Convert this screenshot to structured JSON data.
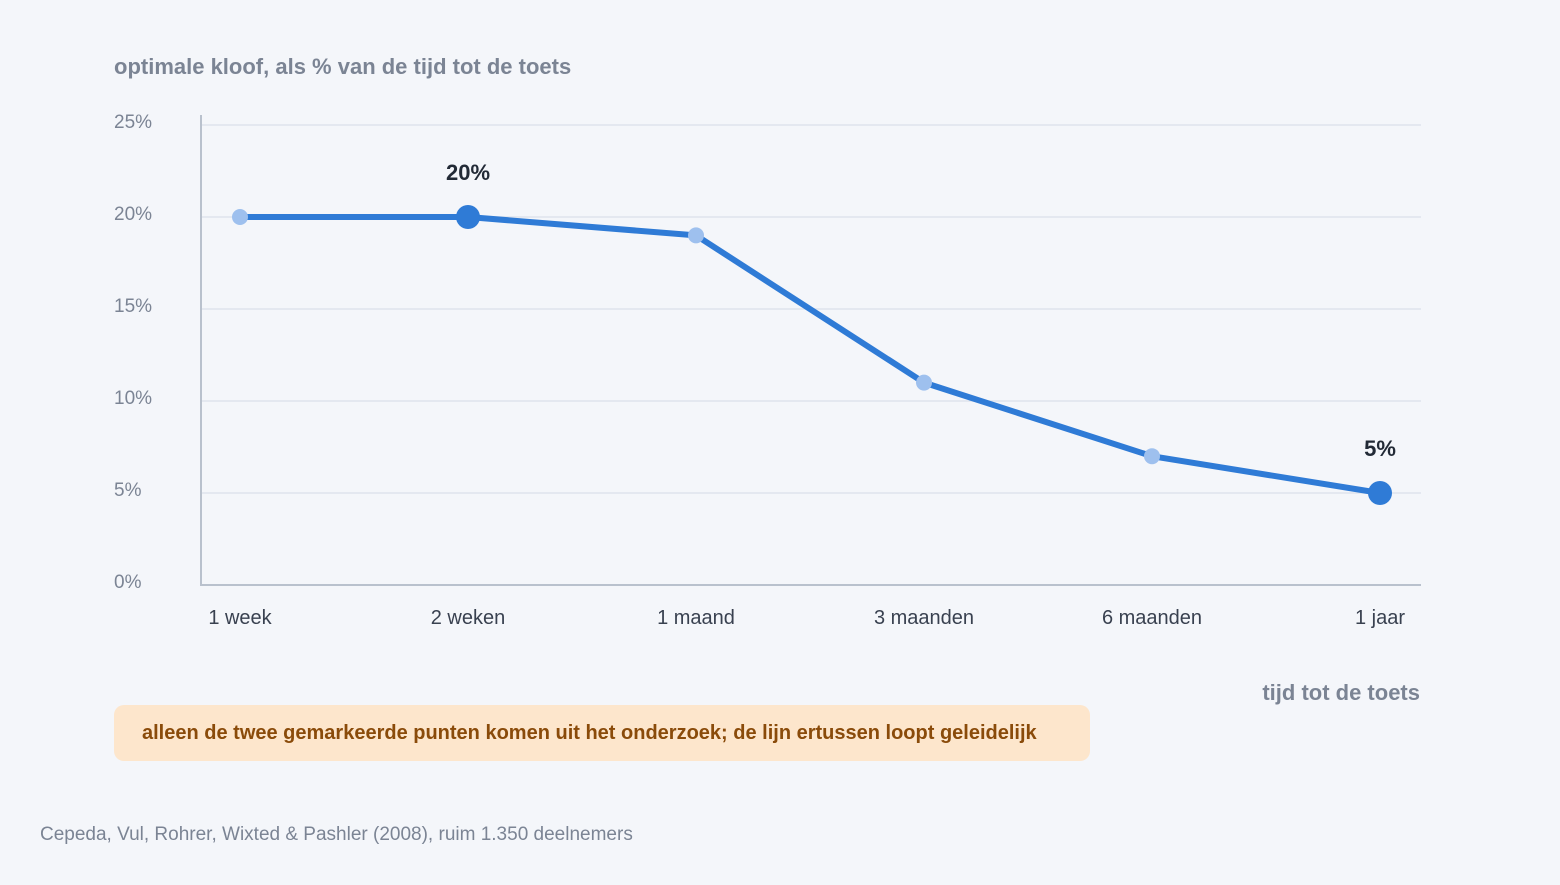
{
  "chart_data": {
    "type": "line",
    "ylabel": "optimale kloof, als % van de tijd tot de toets",
    "xlabel": "tijd tot de toets",
    "categories": [
      "1 week",
      "2 weken",
      "1 maand",
      "3 maanden",
      "6 maanden",
      "1 jaar"
    ],
    "yticks": [
      "0%",
      "5%",
      "10%",
      "15%",
      "20%",
      "25%"
    ],
    "ylim": [
      0,
      25
    ],
    "grid": true,
    "series": [
      {
        "values": [
          20,
          20,
          19,
          11,
          7,
          5
        ],
        "highlighted": [
          false,
          true,
          false,
          false,
          false,
          true
        ],
        "data_labels": [
          "",
          "20%",
          "",
          "",
          "",
          "5%"
        ]
      }
    ],
    "colors": {
      "line": "#2f7bd6",
      "point": "#9ec0ee",
      "highlight": "#2f7bd6",
      "grid": "#dfe4ec",
      "axis": "#b9c1cd"
    }
  },
  "note": "alleen de twee gemarkeerde punten komen uit het onderzoek; de lijn ertussen loopt geleidelijk",
  "source": "Cepeda, Vul, Rohrer, Wixted & Pashler (2008), ruim 1.350 deelnemers"
}
